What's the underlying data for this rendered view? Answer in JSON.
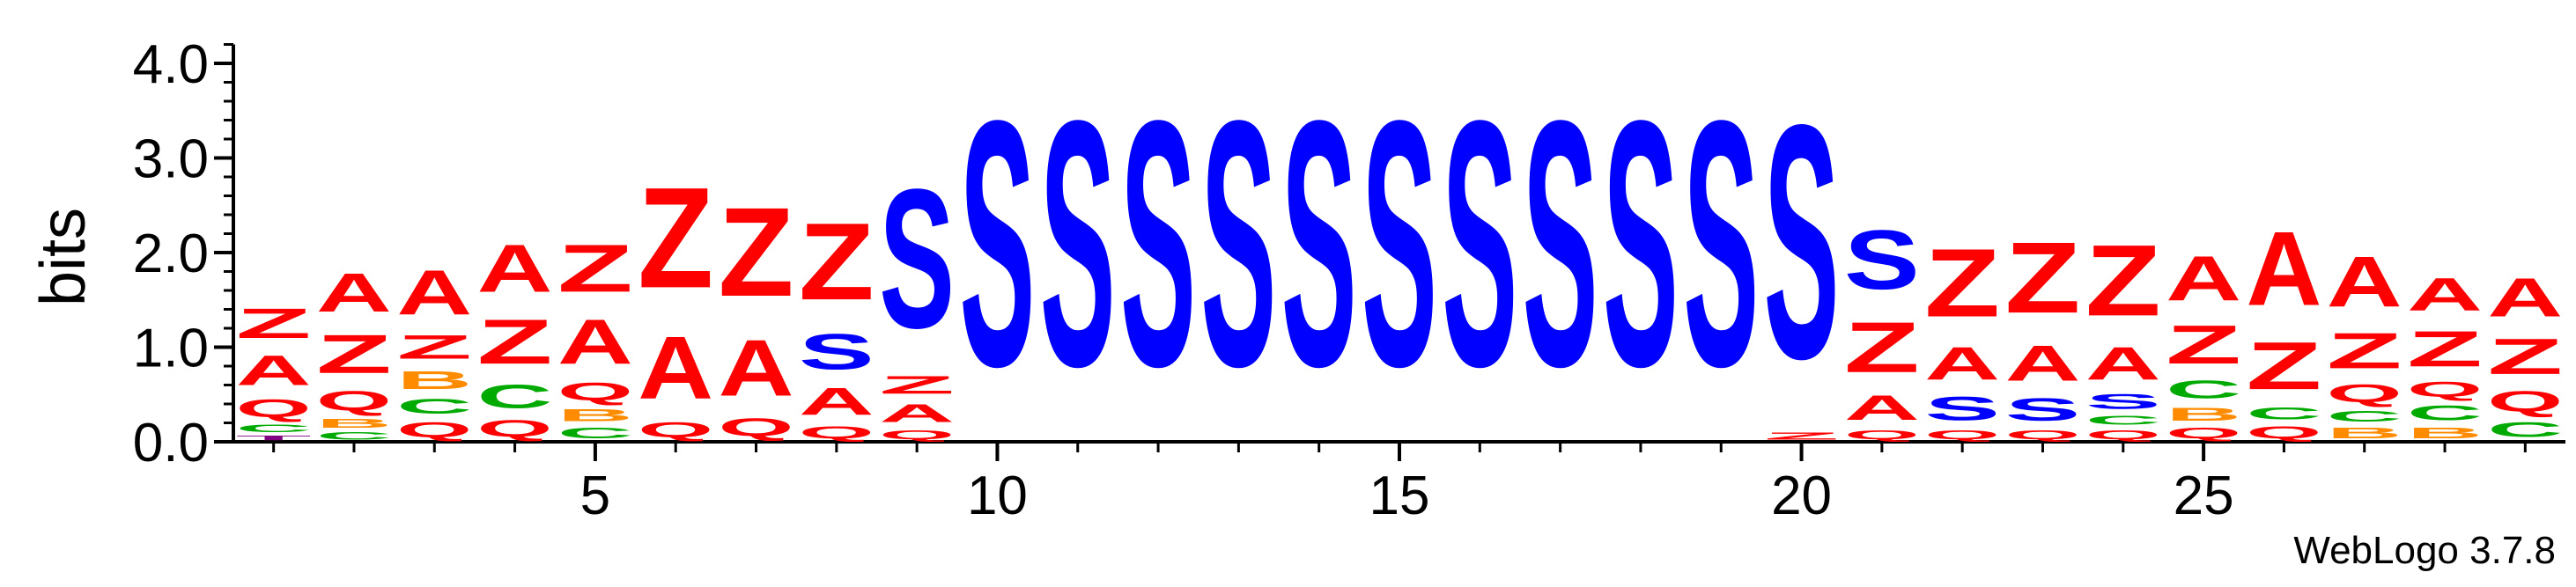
{
  "chart_data": {
    "type": "sequence-logo",
    "ylabel": "bits",
    "ylim": [
      0,
      4.2
    ],
    "yticks": [
      "0.0",
      "1.0",
      "2.0",
      "3.0",
      "4.0"
    ],
    "yticks_values": [
      0,
      1,
      2,
      3,
      4
    ],
    "xticks": [
      5,
      10,
      15,
      20,
      25
    ],
    "positions": 29,
    "colors": {
      "S": "#0000ff",
      "Z": "#ff0000",
      "A": "#ff0000",
      "Q": "#ff0000",
      "C": "#00aa00",
      "B": "#ff8c00",
      "T": "#800080"
    },
    "columns": [
      {
        "position": 1,
        "stack": [
          [
            "T",
            0.08
          ],
          [
            "C",
            0.12
          ],
          [
            "Q",
            0.3
          ],
          [
            "A",
            0.5
          ],
          [
            "Z",
            0.5
          ]
        ]
      },
      {
        "position": 2,
        "stack": [
          [
            "C",
            0.12
          ],
          [
            "B",
            0.15
          ],
          [
            "Q",
            0.33
          ],
          [
            "Z",
            0.65
          ],
          [
            "A",
            0.65
          ]
        ]
      },
      {
        "position": 3,
        "stack": [
          [
            "Q",
            0.25
          ],
          [
            "C",
            0.25
          ],
          [
            "B",
            0.3
          ],
          [
            "Z",
            0.4
          ],
          [
            "A",
            0.75
          ]
        ]
      },
      {
        "position": 4,
        "stack": [
          [
            "Q",
            0.28
          ],
          [
            "C",
            0.4
          ],
          [
            "Z",
            0.75
          ],
          [
            "A",
            0.8
          ]
        ]
      },
      {
        "position": 5,
        "stack": [
          [
            "C",
            0.18
          ],
          [
            "B",
            0.2
          ],
          [
            "Q",
            0.3
          ],
          [
            "A",
            0.75
          ],
          [
            "Z",
            0.8
          ]
        ]
      },
      {
        "position": 6,
        "stack": [
          [
            "Q",
            0.25
          ],
          [
            "A",
            1.05
          ],
          [
            "Z",
            1.7
          ]
        ]
      },
      {
        "position": 7,
        "stack": [
          [
            "Q",
            0.3
          ],
          [
            "A",
            0.95
          ],
          [
            "Z",
            1.5
          ]
        ]
      },
      {
        "position": 8,
        "stack": [
          [
            "Q",
            0.2
          ],
          [
            "A",
            0.45
          ],
          [
            "S",
            0.6
          ],
          [
            "Z",
            1.3
          ]
        ]
      },
      {
        "position": 9,
        "stack": [
          [
            "Q",
            0.15
          ],
          [
            "A",
            0.3
          ],
          [
            "Z",
            0.3
          ],
          [
            "S",
            2.35
          ]
        ]
      },
      {
        "position": 10,
        "stack": [
          [
            "S",
            4.15
          ]
        ]
      },
      {
        "position": 11,
        "stack": [
          [
            "S",
            4.15
          ]
        ]
      },
      {
        "position": 12,
        "stack": [
          [
            "S",
            4.15
          ]
        ]
      },
      {
        "position": 13,
        "stack": [
          [
            "S",
            4.15
          ]
        ]
      },
      {
        "position": 14,
        "stack": [
          [
            "S",
            4.15
          ]
        ]
      },
      {
        "position": 15,
        "stack": [
          [
            "S",
            4.15
          ]
        ]
      },
      {
        "position": 16,
        "stack": [
          [
            "S",
            4.15
          ]
        ]
      },
      {
        "position": 17,
        "stack": [
          [
            "S",
            4.15
          ]
        ]
      },
      {
        "position": 18,
        "stack": [
          [
            "S",
            4.15
          ]
        ]
      },
      {
        "position": 19,
        "stack": [
          [
            "S",
            4.15
          ]
        ]
      },
      {
        "position": 20,
        "stack": [
          [
            "Z",
            0.12
          ],
          [
            "S",
            3.95
          ]
        ]
      },
      {
        "position": 21,
        "stack": [
          [
            "Q",
            0.15
          ],
          [
            "A",
            0.42
          ],
          [
            "Z",
            0.85
          ],
          [
            "S",
            1.0
          ]
        ]
      },
      {
        "position": 22,
        "stack": [
          [
            "Q",
            0.15
          ],
          [
            "S",
            0.4
          ],
          [
            "A",
            0.55
          ],
          [
            "Z",
            1.15
          ]
        ]
      },
      {
        "position": 23,
        "stack": [
          [
            "Q",
            0.15
          ],
          [
            "S",
            0.38
          ],
          [
            "A",
            0.6
          ],
          [
            "Z",
            1.2
          ]
        ]
      },
      {
        "position": 24,
        "stack": [
          [
            "Q",
            0.15
          ],
          [
            "C",
            0.15
          ],
          [
            "S",
            0.25
          ],
          [
            "A",
            0.55
          ],
          [
            "Z",
            1.2
          ]
        ]
      },
      {
        "position": 25,
        "stack": [
          [
            "Q",
            0.18
          ],
          [
            "B",
            0.22
          ],
          [
            "C",
            0.3
          ],
          [
            "Z",
            0.65
          ],
          [
            "A",
            0.75
          ]
        ]
      },
      {
        "position": 26,
        "stack": [
          [
            "Q",
            0.2
          ],
          [
            "C",
            0.2
          ],
          [
            "Z",
            0.8
          ],
          [
            "A",
            1.25
          ]
        ]
      },
      {
        "position": 27,
        "stack": [
          [
            "B",
            0.18
          ],
          [
            "C",
            0.18
          ],
          [
            "Q",
            0.3
          ],
          [
            "Z",
            0.6
          ],
          [
            "A",
            0.85
          ]
        ]
      },
      {
        "position": 28,
        "stack": [
          [
            "B",
            0.18
          ],
          [
            "C",
            0.25
          ],
          [
            "Q",
            0.25
          ],
          [
            "Z",
            0.6
          ],
          [
            "A",
            0.55
          ]
        ]
      },
      {
        "position": 29,
        "stack": [
          [
            "C",
            0.25
          ],
          [
            "Q",
            0.35
          ],
          [
            "Z",
            0.6
          ],
          [
            "A",
            0.65
          ]
        ]
      }
    ]
  },
  "footer": {
    "credit": "WebLogo 3.7.8"
  }
}
